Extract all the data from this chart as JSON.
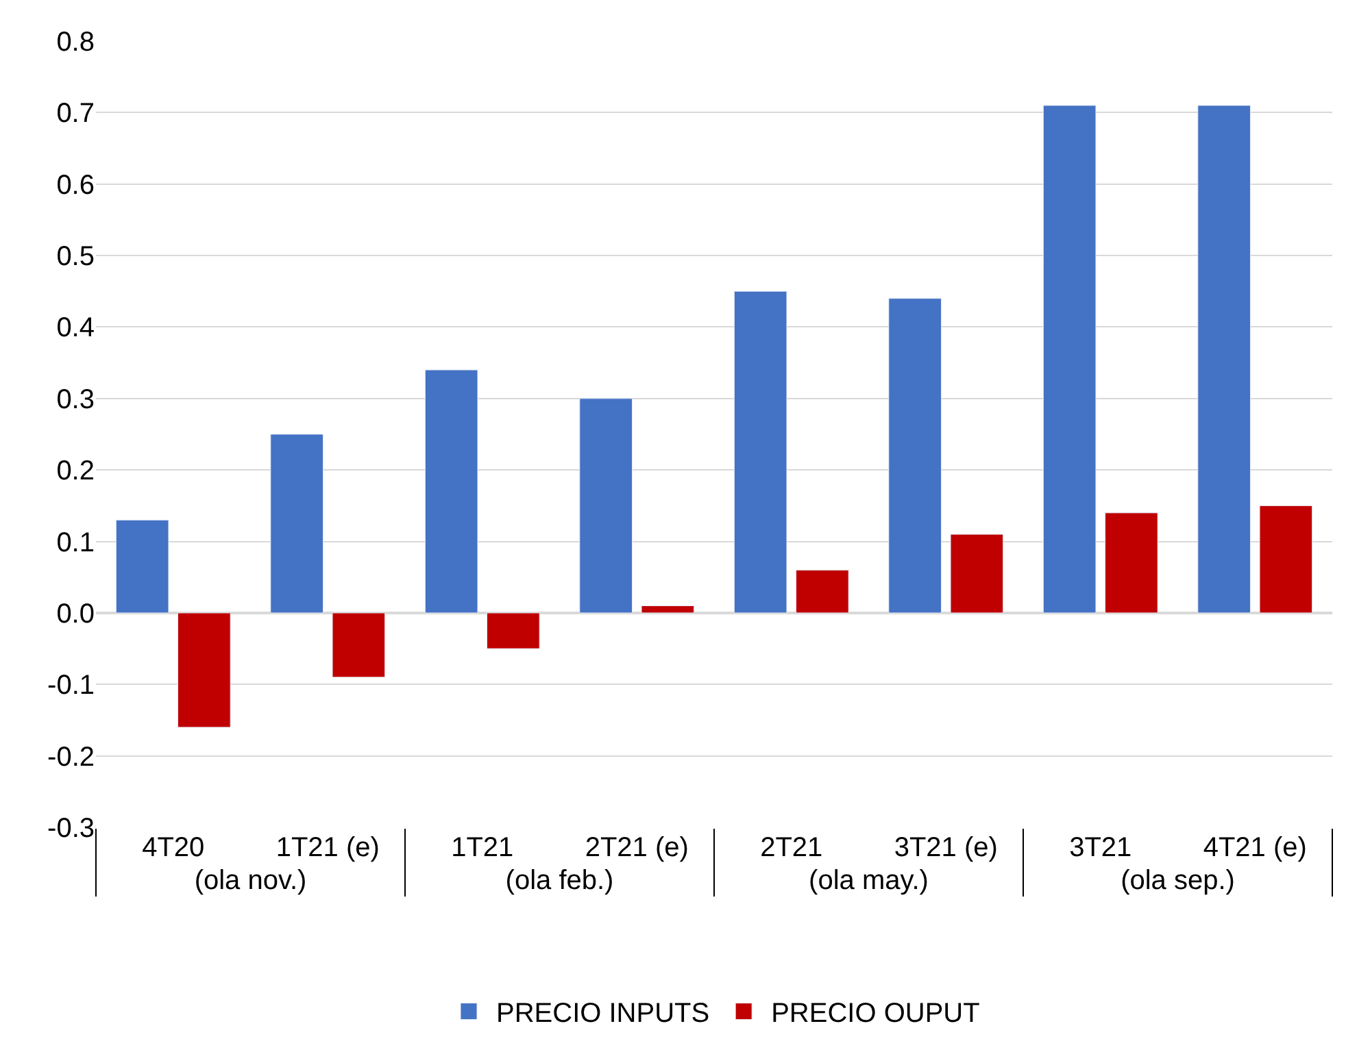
{
  "chart_data": {
    "type": "bar",
    "categories": [
      "4T20",
      "1T21 (e)",
      "1T21",
      "2T21 (e)",
      "2T21",
      "3T21 (e)",
      "3T21",
      "4T21 (e)"
    ],
    "series": [
      {
        "name": "PRECIO INPUTS",
        "color": "#4472c4",
        "values": [
          0.13,
          0.25,
          0.34,
          0.3,
          0.45,
          0.44,
          0.71,
          0.71
        ]
      },
      {
        "name": "PRECIO OUPUT",
        "color": "#c00000",
        "values": [
          -0.16,
          -0.09,
          -0.05,
          0.01,
          0.06,
          0.11,
          0.14,
          0.15
        ]
      }
    ],
    "annotations": [
      "(ola nov.)",
      "(ola feb.)",
      "(ola may.)",
      "(ola sep.)"
    ],
    "ylim": [
      -0.3,
      0.8
    ],
    "yticks": [
      -0.3,
      -0.2,
      -0.1,
      {
        "value": 0,
        "label": "0.0"
      },
      0.1,
      0.2,
      0.3,
      0.4,
      0.5,
      0.6,
      0.7,
      0.8
    ],
    "grid": "y",
    "legend": "bottom"
  }
}
